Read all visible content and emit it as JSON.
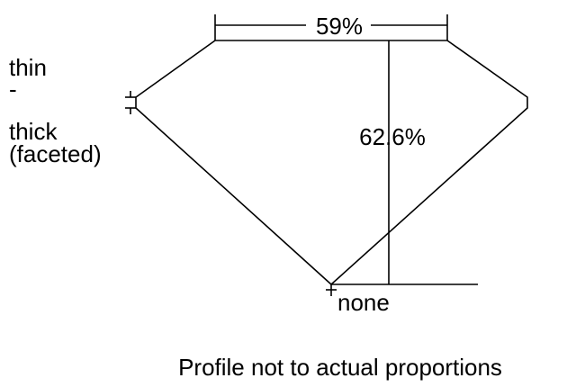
{
  "diagram": {
    "girdle_label": [
      "thin",
      "-",
      "thick",
      "(faceted)"
    ],
    "table_label": "59%",
    "depth_label": "62.6%",
    "culet_label": "none",
    "caption": "Profile not to actual proportions",
    "line_color": "#000000"
  }
}
